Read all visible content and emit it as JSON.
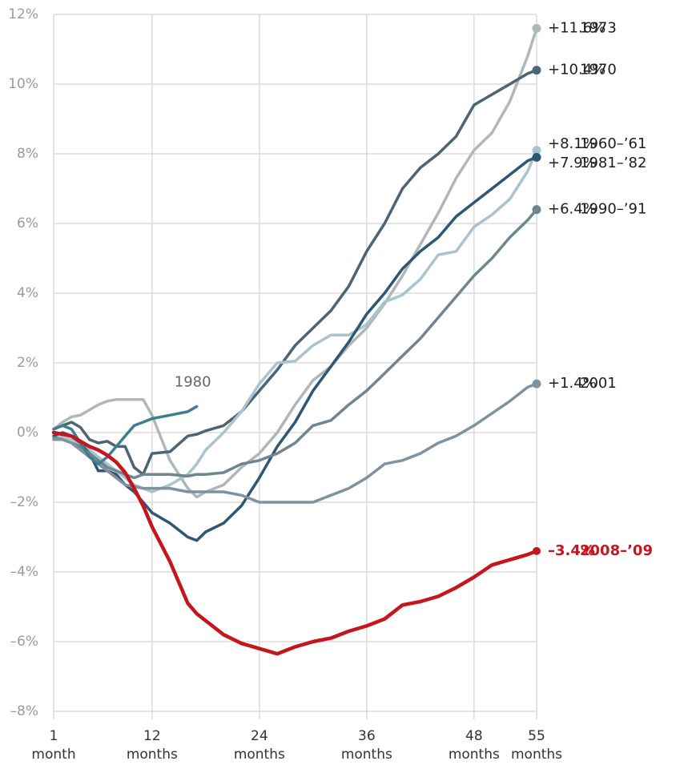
{
  "chart_data": {
    "type": "line",
    "x": [
      1,
      2,
      3,
      4,
      5,
      6,
      7,
      8,
      9,
      10,
      11,
      12,
      14,
      16,
      17,
      18,
      20,
      22,
      24,
      26,
      28,
      30,
      32,
      34,
      36,
      38,
      40,
      42,
      44,
      46,
      48,
      50,
      52,
      54,
      55
    ],
    "xlim": [
      1,
      55
    ],
    "xticks": [
      {
        "value": 1,
        "label": "1 month"
      },
      {
        "value": 12,
        "label": "12 months"
      },
      {
        "value": 24,
        "label": "24 months"
      },
      {
        "value": 36,
        "label": "36 months"
      },
      {
        "value": 48,
        "label": "48 months"
      },
      {
        "value": 55,
        "label": "55 months"
      }
    ],
    "ylim": [
      -8,
      12
    ],
    "yticks": [
      {
        "value": -8,
        "label": "–8%"
      },
      {
        "value": -6,
        "label": "–6%"
      },
      {
        "value": -4,
        "label": "–4%"
      },
      {
        "value": -2,
        "label": "–2%"
      },
      {
        "value": 0,
        "label": "0%"
      },
      {
        "value": 2,
        "label": "2%"
      },
      {
        "value": 4,
        "label": "4%"
      },
      {
        "value": 6,
        "label": "6%"
      },
      {
        "value": 8,
        "label": "8%"
      },
      {
        "value": 10,
        "label": "10%"
      },
      {
        "value": 12,
        "label": "12%"
      }
    ],
    "grid": true,
    "series": [
      {
        "name": "1973",
        "color": "#afb7bb",
        "values": [
          0.1,
          0.3,
          0.45,
          0.5,
          0.65,
          0.8,
          0.9,
          0.95,
          0.95,
          0.95,
          0.95,
          0.5,
          -0.8,
          -1.6,
          -1.85,
          -1.7,
          -1.5,
          -1.0,
          -0.6,
          0.0,
          0.8,
          1.5,
          1.9,
          2.5,
          3.0,
          3.7,
          4.5,
          5.4,
          6.3,
          7.3,
          8.1,
          8.6,
          9.5,
          10.8,
          11.6
        ],
        "value_labels": [
          null,
          null,
          null,
          null,
          null,
          null,
          null,
          null,
          null,
          null,
          null,
          null,
          null,
          null,
          null,
          null,
          null,
          null,
          null,
          null,
          null,
          null,
          null,
          null,
          null,
          null,
          null,
          null,
          null,
          null,
          null,
          null,
          null,
          null,
          "+11.6%"
        ]
      },
      {
        "name": "1970",
        "color": "#4d6472",
        "values": [
          0.1,
          0.2,
          0.3,
          0.15,
          -0.2,
          -0.3,
          -0.25,
          -0.4,
          -0.4,
          -1.0,
          -1.2,
          -0.6,
          -0.55,
          -0.1,
          -0.05,
          0.05,
          0.2,
          0.6,
          1.2,
          1.8,
          2.5,
          3.0,
          3.5,
          4.2,
          5.2,
          6.0,
          7.0,
          7.6,
          8.0,
          8.5,
          9.4,
          9.7,
          10.0,
          10.3,
          10.4
        ],
        "value_labels": [
          null,
          null,
          null,
          null,
          null,
          null,
          null,
          null,
          null,
          null,
          null,
          null,
          null,
          null,
          null,
          null,
          null,
          null,
          null,
          null,
          null,
          null,
          null,
          null,
          null,
          null,
          null,
          null,
          null,
          null,
          null,
          null,
          null,
          null,
          "+10.4%"
        ]
      },
      {
        "name": "1960–’61",
        "color": "#a9c3cf",
        "values": [
          -0.1,
          -0.15,
          -0.2,
          -0.35,
          -0.5,
          -0.7,
          -0.9,
          -1.1,
          -1.3,
          -1.5,
          -1.6,
          -1.7,
          -1.5,
          -1.2,
          -0.9,
          -0.5,
          0.0,
          0.6,
          1.4,
          2.0,
          2.05,
          2.5,
          2.8,
          2.8,
          3.1,
          3.75,
          3.95,
          4.4,
          5.1,
          5.2,
          5.9,
          6.25,
          6.7,
          7.5,
          8.1
        ],
        "value_labels": [
          null,
          null,
          null,
          null,
          null,
          null,
          null,
          null,
          null,
          null,
          null,
          null,
          null,
          null,
          null,
          null,
          null,
          null,
          null,
          null,
          null,
          null,
          null,
          null,
          null,
          null,
          null,
          null,
          null,
          null,
          null,
          null,
          null,
          null,
          "+8.1%"
        ]
      },
      {
        "name": "1981–’82",
        "color": "#2f5673",
        "values": [
          -0.1,
          0.0,
          -0.1,
          -0.3,
          -0.6,
          -1.1,
          -1.1,
          -1.2,
          -1.5,
          -1.7,
          -2.0,
          -2.3,
          -2.6,
          -3.0,
          -3.1,
          -2.85,
          -2.6,
          -2.1,
          -1.3,
          -0.4,
          0.3,
          1.2,
          1.9,
          2.6,
          3.4,
          4.0,
          4.7,
          5.2,
          5.6,
          6.2,
          6.6,
          7.0,
          7.4,
          7.8,
          7.9
        ],
        "value_labels": [
          null,
          null,
          null,
          null,
          null,
          null,
          null,
          null,
          null,
          null,
          null,
          null,
          null,
          null,
          null,
          null,
          null,
          null,
          null,
          null,
          null,
          null,
          null,
          null,
          null,
          null,
          null,
          null,
          null,
          null,
          null,
          null,
          null,
          null,
          "+7.9%"
        ]
      },
      {
        "name": "1990–’91",
        "color": "#6f8590",
        "values": [
          -0.15,
          -0.2,
          -0.3,
          -0.4,
          -0.6,
          -0.8,
          -1.0,
          -1.1,
          -1.2,
          -1.3,
          -1.2,
          -1.2,
          -1.2,
          -1.25,
          -1.2,
          -1.2,
          -1.15,
          -0.9,
          -0.8,
          -0.6,
          -0.3,
          0.2,
          0.35,
          0.8,
          1.2,
          1.7,
          2.2,
          2.7,
          3.3,
          3.9,
          4.5,
          5.0,
          5.6,
          6.1,
          6.4
        ],
        "value_labels": [
          null,
          null,
          null,
          null,
          null,
          null,
          null,
          null,
          null,
          null,
          null,
          null,
          null,
          null,
          null,
          null,
          null,
          null,
          null,
          null,
          null,
          null,
          null,
          null,
          null,
          null,
          null,
          null,
          null,
          null,
          null,
          null,
          null,
          null,
          "+6.4%"
        ]
      },
      {
        "name": "2001",
        "color": "#7e939d",
        "values": [
          -0.2,
          -0.2,
          -0.3,
          -0.5,
          -0.7,
          -0.9,
          -1.1,
          -1.3,
          -1.5,
          -1.55,
          -1.6,
          -1.6,
          -1.6,
          -1.7,
          -1.7,
          -1.7,
          -1.7,
          -1.8,
          -2.0,
          -2.0,
          -2.0,
          -2.0,
          -1.8,
          -1.6,
          -1.3,
          -0.9,
          -0.8,
          -0.6,
          -0.3,
          -0.1,
          0.2,
          0.55,
          0.9,
          1.3,
          1.4
        ],
        "value_labels": [
          null,
          null,
          null,
          null,
          null,
          null,
          null,
          null,
          null,
          null,
          null,
          null,
          null,
          null,
          null,
          null,
          null,
          null,
          null,
          null,
          null,
          null,
          null,
          null,
          null,
          null,
          null,
          null,
          null,
          null,
          null,
          null,
          null,
          null,
          "+1.4%"
        ]
      },
      {
        "name": "1980",
        "color": "#3f7d90",
        "values": [
          0.1,
          0.2,
          0.1,
          -0.3,
          -0.7,
          -0.9,
          -0.7,
          -0.4,
          -0.1,
          0.2,
          0.3,
          0.4,
          0.5,
          0.6,
          0.75,
          null,
          null,
          null,
          null,
          null,
          null,
          null,
          null,
          null,
          null,
          null,
          null,
          null,
          null,
          null,
          null,
          null,
          null,
          null,
          null
        ]
      },
      {
        "name": "2008–’09",
        "color": "#c4161c",
        "highlight": true,
        "values": [
          0,
          -0.05,
          -0.1,
          -0.25,
          -0.4,
          -0.5,
          -0.65,
          -0.85,
          -1.15,
          -1.6,
          -2.1,
          -2.7,
          -3.7,
          -4.9,
          -5.2,
          -5.4,
          -5.8,
          -6.05,
          -6.2,
          -6.35,
          -6.15,
          -6.0,
          -5.9,
          -5.7,
          -5.55,
          -5.35,
          -4.95,
          -4.85,
          -4.7,
          -4.45,
          -4.15,
          -3.8,
          -3.65,
          -3.5,
          -3.4
        ],
        "value_labels": [
          null,
          null,
          null,
          null,
          null,
          null,
          null,
          null,
          null,
          null,
          null,
          null,
          null,
          null,
          null,
          null,
          null,
          null,
          null,
          null,
          null,
          null,
          null,
          null,
          null,
          null,
          null,
          null,
          null,
          null,
          null,
          null,
          null,
          null,
          "–3.4%"
        ]
      }
    ]
  }
}
